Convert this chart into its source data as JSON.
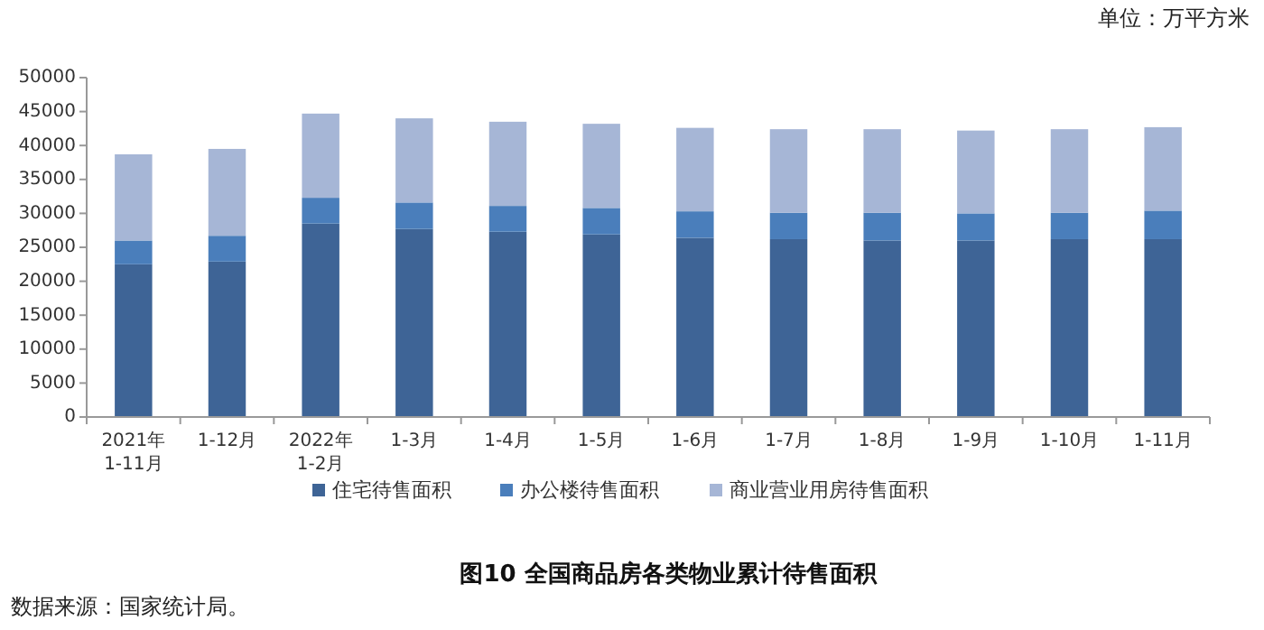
{
  "chart_data": {
    "type": "bar",
    "title": "图10 全国商品房各类物业累计待售面积",
    "subtitle": "单位：万平方米",
    "annotations": [
      "数据来源：国家统计局。"
    ],
    "categories": [
      "2021年\n1-11月",
      "1-12月",
      "2022年\n1-2月",
      "1-3月",
      "1-4月",
      "1-5月",
      "1-6月",
      "1-7月",
      "1-8月",
      "1-9月",
      "1-10月",
      "1-11月"
    ],
    "stacked": true,
    "series": [
      {
        "name": "住宅待售面积",
        "color": "#3e6496",
        "values": [
          22500,
          22900,
          28500,
          27700,
          27300,
          26900,
          26400,
          26200,
          26000,
          26000,
          26200,
          26200
        ]
      },
      {
        "name": "办公楼待售面积",
        "color": "#4a7ebb",
        "values": [
          3500,
          3800,
          3800,
          3900,
          3800,
          3900,
          3900,
          3900,
          4100,
          4000,
          3900,
          4200
        ]
      },
      {
        "name": "商业营业用房待售面积",
        "color": "#a6b6d6",
        "values": [
          12700,
          12800,
          12400,
          12400,
          12400,
          12400,
          12300,
          12300,
          12300,
          12200,
          12300,
          12300
        ]
      }
    ],
    "ylim": [
      0,
      50000
    ],
    "yticks": [
      0,
      5000,
      10000,
      15000,
      20000,
      25000,
      30000,
      35000,
      40000,
      45000,
      50000
    ],
    "grid": false,
    "legend": "bottom"
  }
}
